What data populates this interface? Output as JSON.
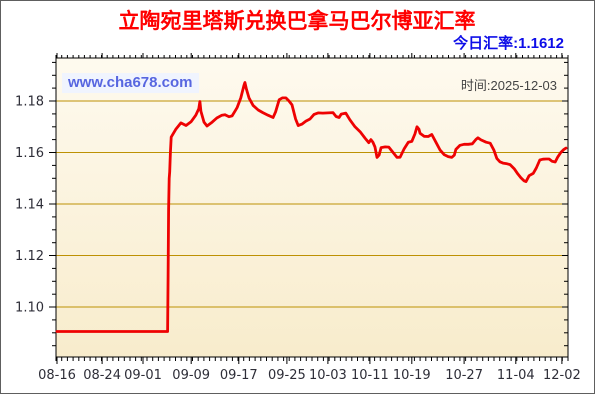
{
  "header": {
    "title": "立陶宛里塔斯兑换巴拿马巴尔博亚汇率",
    "rate_label": "今日汇率:",
    "rate_value": "1.1612"
  },
  "watermark": {
    "text": "www.cha678.com"
  },
  "time": {
    "label": "时间:",
    "value": "2025-12-03"
  },
  "chart_data": {
    "type": "line",
    "title": "立陶宛里塔斯兑换巴拿马巴尔博亚汇率",
    "xlabel": "",
    "ylabel": "",
    "legend": "none",
    "grid": "horizontal",
    "ylim": [
      1.0806,
      1.1967
    ],
    "y_major": [
      1.1,
      1.12,
      1.14,
      1.16,
      1.18
    ],
    "y_minor_step": 0.005,
    "x_ticks": [
      {
        "label": "08-16",
        "f": 0.002
      },
      {
        "label": "08-24",
        "f": 0.09
      },
      {
        "label": "09-01",
        "f": 0.17
      },
      {
        "label": "09-09",
        "f": 0.264
      },
      {
        "label": "09-17",
        "f": 0.357
      },
      {
        "label": "09-25",
        "f": 0.451
      },
      {
        "label": "10-03",
        "f": 0.531
      },
      {
        "label": "10-11",
        "f": 0.613
      },
      {
        "label": "10-19",
        "f": 0.695
      },
      {
        "label": "10-27",
        "f": 0.797
      },
      {
        "label": "11-04",
        "f": 0.898
      },
      {
        "label": "12-02",
        "f": 0.988
      }
    ],
    "colors": {
      "line": "#ee0202",
      "grid": "#bd9104",
      "axis": "#000000",
      "tick_label": "#2e2e38",
      "plot_bg_top": "#fefaef",
      "plot_bg_bottom": "#f8eccc"
    },
    "points": [
      [
        0.002,
        1.0905
      ],
      [
        0.05,
        1.0905
      ],
      [
        0.1,
        1.0905
      ],
      [
        0.15,
        1.0905
      ],
      [
        0.2,
        1.0905
      ],
      [
        0.215,
        1.0905
      ],
      [
        0.218,
        1.0905
      ],
      [
        0.219,
        1.112
      ],
      [
        0.22,
        1.138
      ],
      [
        0.221,
        1.15
      ],
      [
        0.222,
        1.1525
      ],
      [
        0.2235,
        1.16
      ],
      [
        0.225,
        1.166
      ],
      [
        0.234,
        1.169
      ],
      [
        0.244,
        1.1715
      ],
      [
        0.254,
        1.1705
      ],
      [
        0.264,
        1.172
      ],
      [
        0.273,
        1.1745
      ],
      [
        0.279,
        1.177
      ],
      [
        0.281,
        1.1798
      ],
      [
        0.283,
        1.176
      ],
      [
        0.289,
        1.1718
      ],
      [
        0.295,
        1.1703
      ],
      [
        0.305,
        1.1718
      ],
      [
        0.314,
        1.1734
      ],
      [
        0.324,
        1.1745
      ],
      [
        0.33,
        1.1747
      ],
      [
        0.338,
        1.1739
      ],
      [
        0.344,
        1.1742
      ],
      [
        0.35,
        1.1762
      ],
      [
        0.354,
        1.1775
      ],
      [
        0.361,
        1.1812
      ],
      [
        0.367,
        1.186
      ],
      [
        0.369,
        1.1872
      ],
      [
        0.372,
        1.1845
      ],
      [
        0.377,
        1.1812
      ],
      [
        0.385,
        1.1783
      ],
      [
        0.395,
        1.1765
      ],
      [
        0.404,
        1.1755
      ],
      [
        0.414,
        1.1745
      ],
      [
        0.424,
        1.1736
      ],
      [
        0.429,
        1.1758
      ],
      [
        0.436,
        1.1805
      ],
      [
        0.442,
        1.1812
      ],
      [
        0.449,
        1.1812
      ],
      [
        0.455,
        1.18
      ],
      [
        0.461,
        1.1785
      ],
      [
        0.468,
        1.173
      ],
      [
        0.473,
        1.1705
      ],
      [
        0.48,
        1.171
      ],
      [
        0.488,
        1.1722
      ],
      [
        0.496,
        1.173
      ],
      [
        0.504,
        1.1748
      ],
      [
        0.512,
        1.1754
      ],
      [
        0.521,
        1.1753
      ],
      [
        0.531,
        1.1754
      ],
      [
        0.541,
        1.1755
      ],
      [
        0.547,
        1.174
      ],
      [
        0.553,
        1.1736
      ],
      [
        0.557,
        1.1749
      ],
      [
        0.566,
        1.1753
      ],
      [
        0.574,
        1.1727
      ],
      [
        0.584,
        1.17
      ],
      [
        0.594,
        1.1681
      ],
      [
        0.604,
        1.1655
      ],
      [
        0.611,
        1.1638
      ],
      [
        0.615,
        1.165
      ],
      [
        0.619,
        1.164
      ],
      [
        0.623,
        1.1621
      ],
      [
        0.627,
        1.1581
      ],
      [
        0.631,
        1.159
      ],
      [
        0.635,
        1.1619
      ],
      [
        0.643,
        1.1622
      ],
      [
        0.65,
        1.1621
      ],
      [
        0.658,
        1.1601
      ],
      [
        0.666,
        1.1581
      ],
      [
        0.672,
        1.1582
      ],
      [
        0.68,
        1.1615
      ],
      [
        0.688,
        1.164
      ],
      [
        0.695,
        1.1643
      ],
      [
        0.701,
        1.1672
      ],
      [
        0.705,
        1.17
      ],
      [
        0.709,
        1.169
      ],
      [
        0.711,
        1.1675
      ],
      [
        0.719,
        1.1663
      ],
      [
        0.727,
        1.1662
      ],
      [
        0.734,
        1.167
      ],
      [
        0.742,
        1.164
      ],
      [
        0.75,
        1.161
      ],
      [
        0.758,
        1.1592
      ],
      [
        0.766,
        1.1584
      ],
      [
        0.773,
        1.1581
      ],
      [
        0.778,
        1.159
      ],
      [
        0.781,
        1.1612
      ],
      [
        0.789,
        1.1628
      ],
      [
        0.797,
        1.1632
      ],
      [
        0.805,
        1.1632
      ],
      [
        0.813,
        1.1634
      ],
      [
        0.82,
        1.165
      ],
      [
        0.824,
        1.1657
      ],
      [
        0.83,
        1.1649
      ],
      [
        0.84,
        1.164
      ],
      [
        0.848,
        1.1636
      ],
      [
        0.855,
        1.161
      ],
      [
        0.861,
        1.1577
      ],
      [
        0.867,
        1.1564
      ],
      [
        0.873,
        1.1559
      ],
      [
        0.881,
        1.1556
      ],
      [
        0.887,
        1.1553
      ],
      [
        0.895,
        1.1537
      ],
      [
        0.902,
        1.1517
      ],
      [
        0.908,
        1.1502
      ],
      [
        0.914,
        1.149
      ],
      [
        0.918,
        1.1487
      ],
      [
        0.924,
        1.151
      ],
      [
        0.932,
        1.1519
      ],
      [
        0.938,
        1.154
      ],
      [
        0.945,
        1.1571
      ],
      [
        0.951,
        1.1574
      ],
      [
        0.957,
        1.1575
      ],
      [
        0.963,
        1.1575
      ],
      [
        0.969,
        1.1566
      ],
      [
        0.975,
        1.1563
      ],
      [
        0.98,
        1.1583
      ],
      [
        0.986,
        1.16
      ],
      [
        0.992,
        1.1612
      ],
      [
        0.996,
        1.1617
      ]
    ]
  }
}
